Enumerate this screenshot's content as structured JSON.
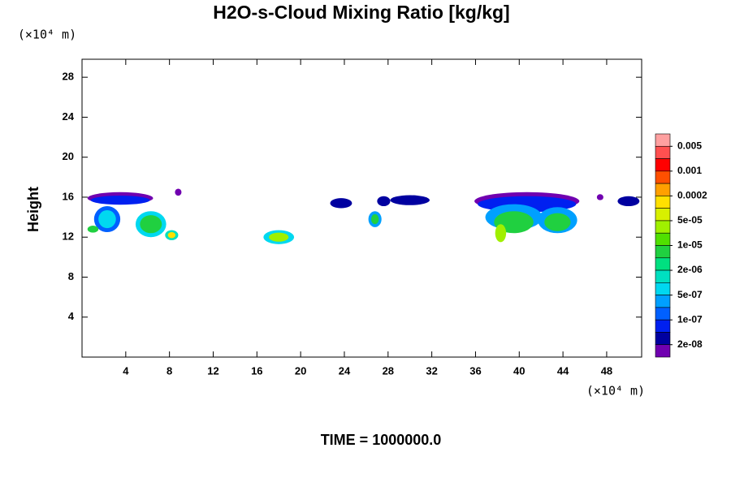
{
  "chart_data": {
    "type": "contour",
    "title": "H2O-s-Cloud Mixing Ratio [kg/kg]",
    "y_label": "Height",
    "y_unit": "(×10⁴ m)",
    "x_unit": "(×10⁴ m)",
    "footer": "TIME = 1000000.0",
    "xlim": [
      0,
      51.2
    ],
    "ylim": [
      0,
      29.8
    ],
    "xticks": [
      4,
      8,
      12,
      16,
      20,
      24,
      28,
      32,
      36,
      40,
      44,
      48
    ],
    "yticks": [
      4,
      8,
      12,
      16,
      20,
      24,
      28
    ],
    "colorbar": {
      "colors": [
        "#ffa0a0",
        "#ff5050",
        "#ff0000",
        "#ff5000",
        "#ffa000",
        "#ffe000",
        "#d8f000",
        "#a0f000",
        "#50e000",
        "#20d040",
        "#00e080",
        "#00e0c0",
        "#00d8f0",
        "#00a0ff",
        "#0060ff",
        "#0020f0",
        "#0000a0",
        "#7000b0"
      ],
      "ticks": [
        {
          "value": 0.005,
          "label": "0.005"
        },
        {
          "value": 0.001,
          "label": "0.001"
        },
        {
          "value": 0.0002,
          "label": "0.0002"
        },
        {
          "value": 5e-05,
          "label": "5e-05"
        },
        {
          "value": 1e-05,
          "label": "1e-05"
        },
        {
          "value": 2e-06,
          "label": "2e-06"
        },
        {
          "value": 5e-07,
          "label": "5e-07"
        },
        {
          "value": 1e-07,
          "label": "1e-07"
        },
        {
          "value": 2e-08,
          "label": "2e-08"
        }
      ]
    },
    "regions": [
      {
        "x": 3.5,
        "y": 15.9,
        "rx": 3.0,
        "ry": 0.6,
        "value": 1e-08
      },
      {
        "x": 3.5,
        "y": 15.7,
        "rx": 2.7,
        "ry": 0.45,
        "value": 5e-08
      },
      {
        "x": 2.3,
        "y": 13.8,
        "rx": 1.2,
        "ry": 1.3,
        "value": 2e-07
      },
      {
        "x": 2.3,
        "y": 13.8,
        "rx": 0.8,
        "ry": 0.9,
        "value": 1e-06
      },
      {
        "x": 1.0,
        "y": 12.8,
        "rx": 0.5,
        "ry": 0.35,
        "value": 5e-06
      },
      {
        "x": 6.3,
        "y": 13.3,
        "rx": 1.4,
        "ry": 1.3,
        "value": 1e-06
      },
      {
        "x": 6.3,
        "y": 13.3,
        "rx": 1.0,
        "ry": 0.9,
        "value": 1e-05
      },
      {
        "x": 8.2,
        "y": 12.2,
        "rx": 0.6,
        "ry": 0.5,
        "value": 2e-06
      },
      {
        "x": 8.2,
        "y": 12.2,
        "rx": 0.35,
        "ry": 0.3,
        "value": 0.0001
      },
      {
        "x": 8.8,
        "y": 16.5,
        "rx": 0.3,
        "ry": 0.35,
        "value": 1e-08
      },
      {
        "x": 18.0,
        "y": 12.0,
        "rx": 1.4,
        "ry": 0.7,
        "value": 1e-06
      },
      {
        "x": 18.0,
        "y": 12.0,
        "rx": 0.9,
        "ry": 0.45,
        "value": 3e-05
      },
      {
        "x": 23.7,
        "y": 15.4,
        "rx": 1.0,
        "ry": 0.5,
        "value": 3e-08
      },
      {
        "x": 26.8,
        "y": 13.8,
        "rx": 0.6,
        "ry": 0.8,
        "value": 5e-07
      },
      {
        "x": 26.8,
        "y": 13.8,
        "rx": 0.35,
        "ry": 0.5,
        "value": 1e-05
      },
      {
        "x": 27.6,
        "y": 15.6,
        "rx": 0.6,
        "ry": 0.5,
        "value": 3e-08
      },
      {
        "x": 30.0,
        "y": 15.7,
        "rx": 1.8,
        "ry": 0.5,
        "value": 3e-08
      },
      {
        "x": 40.7,
        "y": 15.6,
        "rx": 4.8,
        "ry": 0.9,
        "value": 1e-08
      },
      {
        "x": 40.7,
        "y": 15.3,
        "rx": 4.5,
        "ry": 0.8,
        "value": 5e-08
      },
      {
        "x": 39.5,
        "y": 14.0,
        "rx": 2.6,
        "ry": 1.3,
        "value": 5e-07
      },
      {
        "x": 39.5,
        "y": 13.5,
        "rx": 1.8,
        "ry": 1.1,
        "value": 1e-05
      },
      {
        "x": 38.3,
        "y": 12.4,
        "rx": 0.5,
        "ry": 0.9,
        "value": 5e-05
      },
      {
        "x": 43.5,
        "y": 13.7,
        "rx": 1.8,
        "ry": 1.3,
        "value": 5e-07
      },
      {
        "x": 43.5,
        "y": 13.5,
        "rx": 1.2,
        "ry": 0.9,
        "value": 1e-05
      },
      {
        "x": 47.4,
        "y": 16.0,
        "rx": 0.3,
        "ry": 0.3,
        "value": 1e-08
      },
      {
        "x": 50.0,
        "y": 15.6,
        "rx": 1.0,
        "ry": 0.5,
        "value": 3e-08
      }
    ]
  }
}
